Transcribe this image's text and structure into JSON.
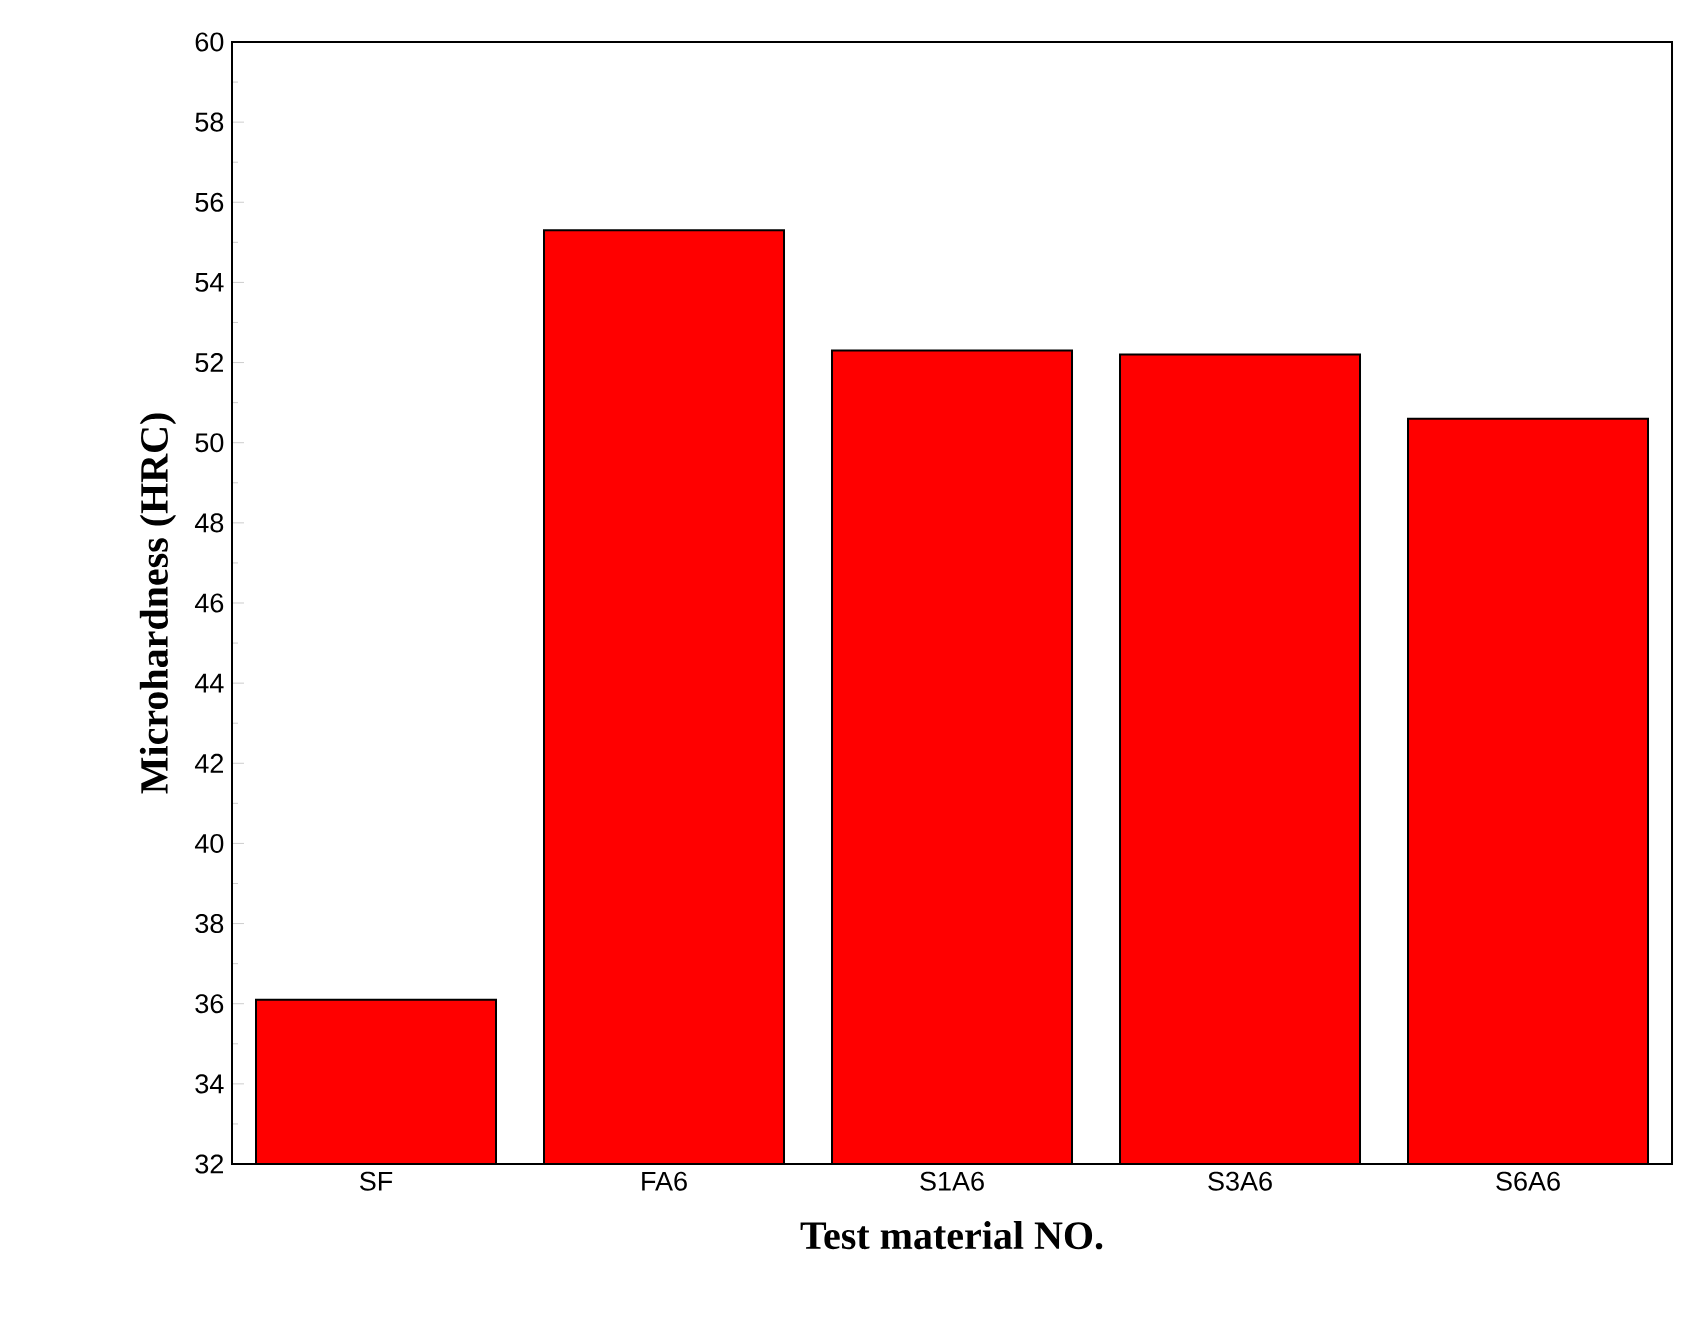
{
  "chart_data": {
    "type": "bar",
    "xlabel": "Test material NO.",
    "ylabel": "Microhardness (HRC)",
    "categories": [
      "SF",
      "FA6",
      "S1A6",
      "S3A6",
      "S6A6"
    ],
    "values": [
      36.1,
      55.3,
      52.3,
      52.2,
      50.6
    ],
    "color": "#ff0000",
    "ylim": [
      32,
      60
    ],
    "yticks": [
      32,
      34,
      36,
      38,
      40,
      42,
      44,
      46,
      48,
      50,
      52,
      54,
      56,
      58,
      60
    ]
  }
}
